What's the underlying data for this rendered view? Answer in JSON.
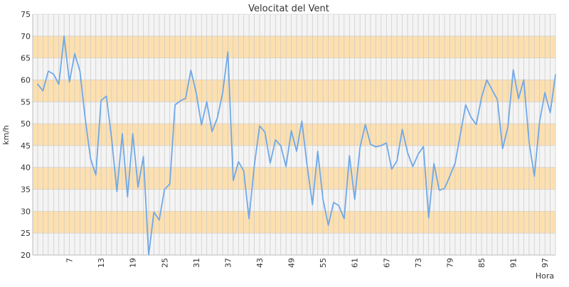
{
  "colors": {
    "background": "#ffffff",
    "plot_background": "#f4f4f4",
    "band": "#fde0b0",
    "line": "#6fa8e8",
    "grid": "#c8c8c8",
    "text": "#333333"
  },
  "chart_data": {
    "type": "line",
    "title": "Velocitat del Vent",
    "xlabel": "Hora",
    "ylabel": "km/h",
    "ylim": [
      20,
      75
    ],
    "yticks": [
      20,
      25,
      30,
      35,
      40,
      45,
      50,
      55,
      60,
      65,
      70,
      75
    ],
    "x_tick_labels": [
      "7",
      "13",
      "19",
      "25",
      "31",
      "37",
      "43",
      "49",
      "55",
      "61",
      "67",
      "73",
      "79",
      "85",
      "91",
      "97"
    ],
    "bands": [
      [
        25,
        30
      ],
      [
        35,
        40
      ],
      [
        45,
        50
      ],
      [
        55,
        60
      ],
      [
        65,
        70
      ]
    ],
    "grid": true,
    "series": [
      {
        "x": [
          1,
          2,
          3,
          4,
          5,
          6,
          7,
          8,
          9,
          10,
          11,
          12,
          13,
          14,
          15,
          16,
          17,
          18,
          19,
          20,
          21,
          22,
          23,
          24,
          25,
          26,
          27,
          28,
          29,
          30,
          31,
          32,
          33,
          34,
          35,
          36,
          37,
          38,
          39,
          40,
          41,
          42,
          43,
          44,
          45,
          46,
          47,
          48,
          49,
          50,
          51,
          52,
          53,
          54,
          55,
          56,
          57,
          58,
          59,
          60,
          61,
          62,
          63,
          64,
          65,
          66,
          67,
          68,
          69,
          70,
          71,
          72,
          73,
          74,
          75,
          76,
          77,
          78,
          79,
          80,
          81,
          82,
          83,
          84,
          85,
          86,
          87,
          88,
          89,
          90,
          91,
          92,
          93,
          94,
          95,
          96,
          97,
          98,
          99
        ],
        "values": [
          59,
          57.5,
          62,
          61.3,
          59,
          70,
          59.5,
          66,
          62,
          51,
          42,
          38.3,
          55.3,
          56.3,
          46.5,
          34.5,
          47.7,
          33.3,
          47.7,
          35.5,
          42.5,
          20,
          29.8,
          28,
          35,
          36.2,
          54.3,
          55.2,
          55.8,
          62.2,
          57,
          49.7,
          55,
          48.2,
          51.3,
          57,
          66.4,
          37,
          41.3,
          39.2,
          28.3,
          40.5,
          49.5,
          48.1,
          41,
          46.3,
          45,
          40.2,
          48.4,
          43.7,
          50.6,
          40.3,
          31.5,
          43.7,
          32.7,
          26.8,
          32,
          31.3,
          28.3,
          42.7,
          32.7,
          44.5,
          49.8,
          45.3,
          44.7,
          45,
          45.6,
          39.6,
          41.5,
          48.7,
          43.4,
          40.2,
          43,
          44.8,
          28.5,
          40.9,
          34.8,
          35.2,
          38,
          41,
          47.6,
          54.3,
          51.5,
          49.8,
          56,
          60,
          57.7,
          55.5,
          44.3,
          49.3,
          62.3,
          55.7,
          60,
          45.8,
          38,
          50.5,
          57.1,
          52.5,
          61.2
        ]
      }
    ]
  }
}
